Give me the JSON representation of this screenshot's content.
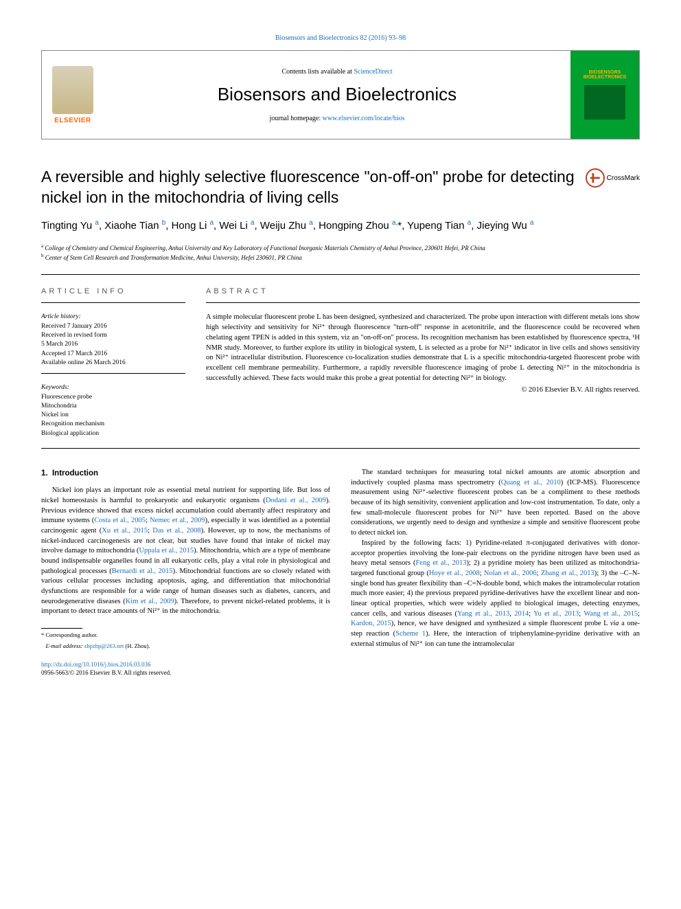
{
  "header": {
    "citation": "Biosensors and Bioelectronics 82 (2016) 93–98",
    "contents_prefix": "Contents lists available at ",
    "contents_link": "ScienceDirect",
    "journal_name": "Biosensors and Bioelectronics",
    "homepage_prefix": "journal homepage: ",
    "homepage_link": "www.elsevier.com/locate/bios",
    "publisher": "ELSEVIER",
    "cover_text": "BIOSENSORS BIOELECTRONICS",
    "crossmark": "CrossMark"
  },
  "article": {
    "title": "A reversible and highly selective fluorescence \"on-off-on\" probe for detecting nickel ion in the mitochondria of living cells",
    "authors_html": "Tingting Yu <sup>a</sup>, Xiaohe Tian <sup>b</sup>, Hong Li <sup>a</sup>, Wei Li <sup>a</sup>, Weiju Zhu <sup>a</sup>, Hongping Zhou <sup>a,</sup><span class='star'>*</span>, Yupeng Tian <sup>a</sup>, Jieying Wu <sup>a</sup>",
    "affiliations": [
      {
        "sup": "a",
        "text": "College of Chemistry and Chemical Engineering, Anhui University and Key Laboratory of Functional Inorganic Materials Chemistry of Anhui Province, 230601 Hefei, PR China"
      },
      {
        "sup": "b",
        "text": "Center of Stem Cell Research and Transformation Medicine, Anhui University, Hefei 230601, PR China"
      }
    ]
  },
  "info": {
    "label": "ARTICLE INFO",
    "history_label": "Article history:",
    "history": [
      "Received 7 January 2016",
      "Received in revised form",
      "5 March 2016",
      "Accepted 17 March 2016",
      "Available online 26 March 2016"
    ],
    "keywords_label": "Keywords:",
    "keywords": [
      "Fluorescence probe",
      "Mitochondria",
      "Nickel ion",
      "Recognition mechanism",
      "Biological application"
    ]
  },
  "abstract": {
    "label": "ABSTRACT",
    "text": "A simple molecular fluorescent probe L has been designed, synthesized and characterized. The probe upon interaction with different metals ions show high selectivity and sensitivity for Ni²⁺ through fluorescence \"turn-off\" response in acetonitrile, and the fluorescence could be recovered when chelating agent TPEN is added in this system, viz an \"on-off-on\" process. Its recognition mechanism has been established by fluorescence spectra, ¹H NMR study. Moreover, to further explore its utility in biological system, L is selected as a probe for Ni²⁺ indicator in live cells and shows sensitivity on Ni²⁺ intracellular distribution. Fluorescence co-localization studies demonstrate that L is a specific mitochondria-targeted fluorescent probe with excellent cell membrane permeability. Furthermore, a rapidly reversible fluorescence imaging of probe L detecting Ni²⁺ in the mitochondria is successfully achieved. These facts would make this probe a great potential for detecting Ni²⁺ in biology.",
    "copyright": "© 2016 Elsevier B.V. All rights reserved."
  },
  "body": {
    "section_num": "1.",
    "section_title": "Introduction",
    "col1_p1": "Nickel ion plays an important role as essential metal nutrient for supporting life. But loss of nickel homeostasis is harmful to prokaryotic and eukaryotic organisms (<a>Dodani et al., 2009</a>). Previous evidence showed that excess nickel accumulation could aberrantly affect respiratory and immune systems (<a>Costa et al., 2005</a>; <a>Nemec et al., 2009</a>), especially it was identified as a potential carcinogenic agent (<a>Xu et al., 2015</a>; <a>Das et al., 2008</a>). However, up to now, the mechanisms of nickel-induced carcinogenesis are not clear, but studies have found that intake of nickel may involve damage to mitochondria (<a>Uppala et al., 2015</a>). Mitochondria, which are a type of membrane bound indispensable organelles found in all eukaryotic cells, play a vital role in physiological and pathological processes (<a>Bernardi et al., 2015</a>). Mitochondrial functions are so closely related with various cellular processes including apoptosis, aging, and differentiation that mitochondrial dysfunctions are responsible for a wide range of human diseases such as diabetes, cancers, and neurodegenerative diseases (<a>Kim et al., 2009</a>). Therefore, to prevent nickel-related problems, it is important to detect trace amounts of Ni²⁺ in the mitochondria.",
    "col2_p1": "The standard techniques for measuring total nickel amounts are atomic absorption and inductively coupled plasma mass spectrometry (<a>Quang et al., 2010</a>) (ICP-MS). Fluorescence measurement using Ni²⁺-selective fluorescent probes can be a compliment to these methods because of its high sensitivity, convenient application and low-cost instrumentation. To date, only a few small-molecule fluorescent probes for Ni²⁺ have been reported. Based on the above considerations, we urgently need to design and synthesize a simple and sensitive fluorescent probe to detect nickel ion.",
    "col2_p2": "Inspired by the following facts: 1) Pyridine-related π-conjugated derivatives with donor-acceptor properties involving the lone-pair electrons on the pyridine nitrogen have been used as heavy metal sensors (<a>Feng et al., 2013</a>); 2) a pyridine moiety has been utilized as mitochondria-targeted functional group (<a>Hoye et al., 2008</a>; <a>Nolan et al., 2006</a>; <a>Zhang et al., 2013</a>); 3) the –C–N-single bond has greater flexibility than –C=N-double bond, which makes the intramolecular rotation much more easier; 4) the previous prepared pyridine-derivatives have the excellent linear and non-linear optical properties, which were widely applied to biological images, detecting enzymes, cancer cells, and various diseases (<a>Yang et al., 2013</a>, <a>2014</a>; <a>Yu et al., 2013</a>; <a>Wang et al., 2015</a>; <a>Kardon, 2015</a>), hence, we have designed and synthesized a simple fluorescent probe L <i>via</i> a one-step reaction (<a>Scheme 1</a>). Here, the interaction of triphenylamine-pyridine derivative with an external stimulus of Ni²⁺ ion can tune the intramolecular"
  },
  "footnotes": {
    "corr": "* Corresponding author.",
    "email_label": "E-mail address:",
    "email": "zhpzhp@263.net",
    "email_suffix": "(H. Zhou)."
  },
  "footer": {
    "doi": "http://dx.doi.org/10.1016/j.bios.2016.03.036",
    "issn": "0956-5663/© 2016 Elsevier B.V. All rights reserved."
  },
  "colors": {
    "link": "#1a6eb8",
    "elsevier_orange": "#ff6600",
    "cover_green": "#00a030",
    "crossmark": "#b8441f"
  }
}
